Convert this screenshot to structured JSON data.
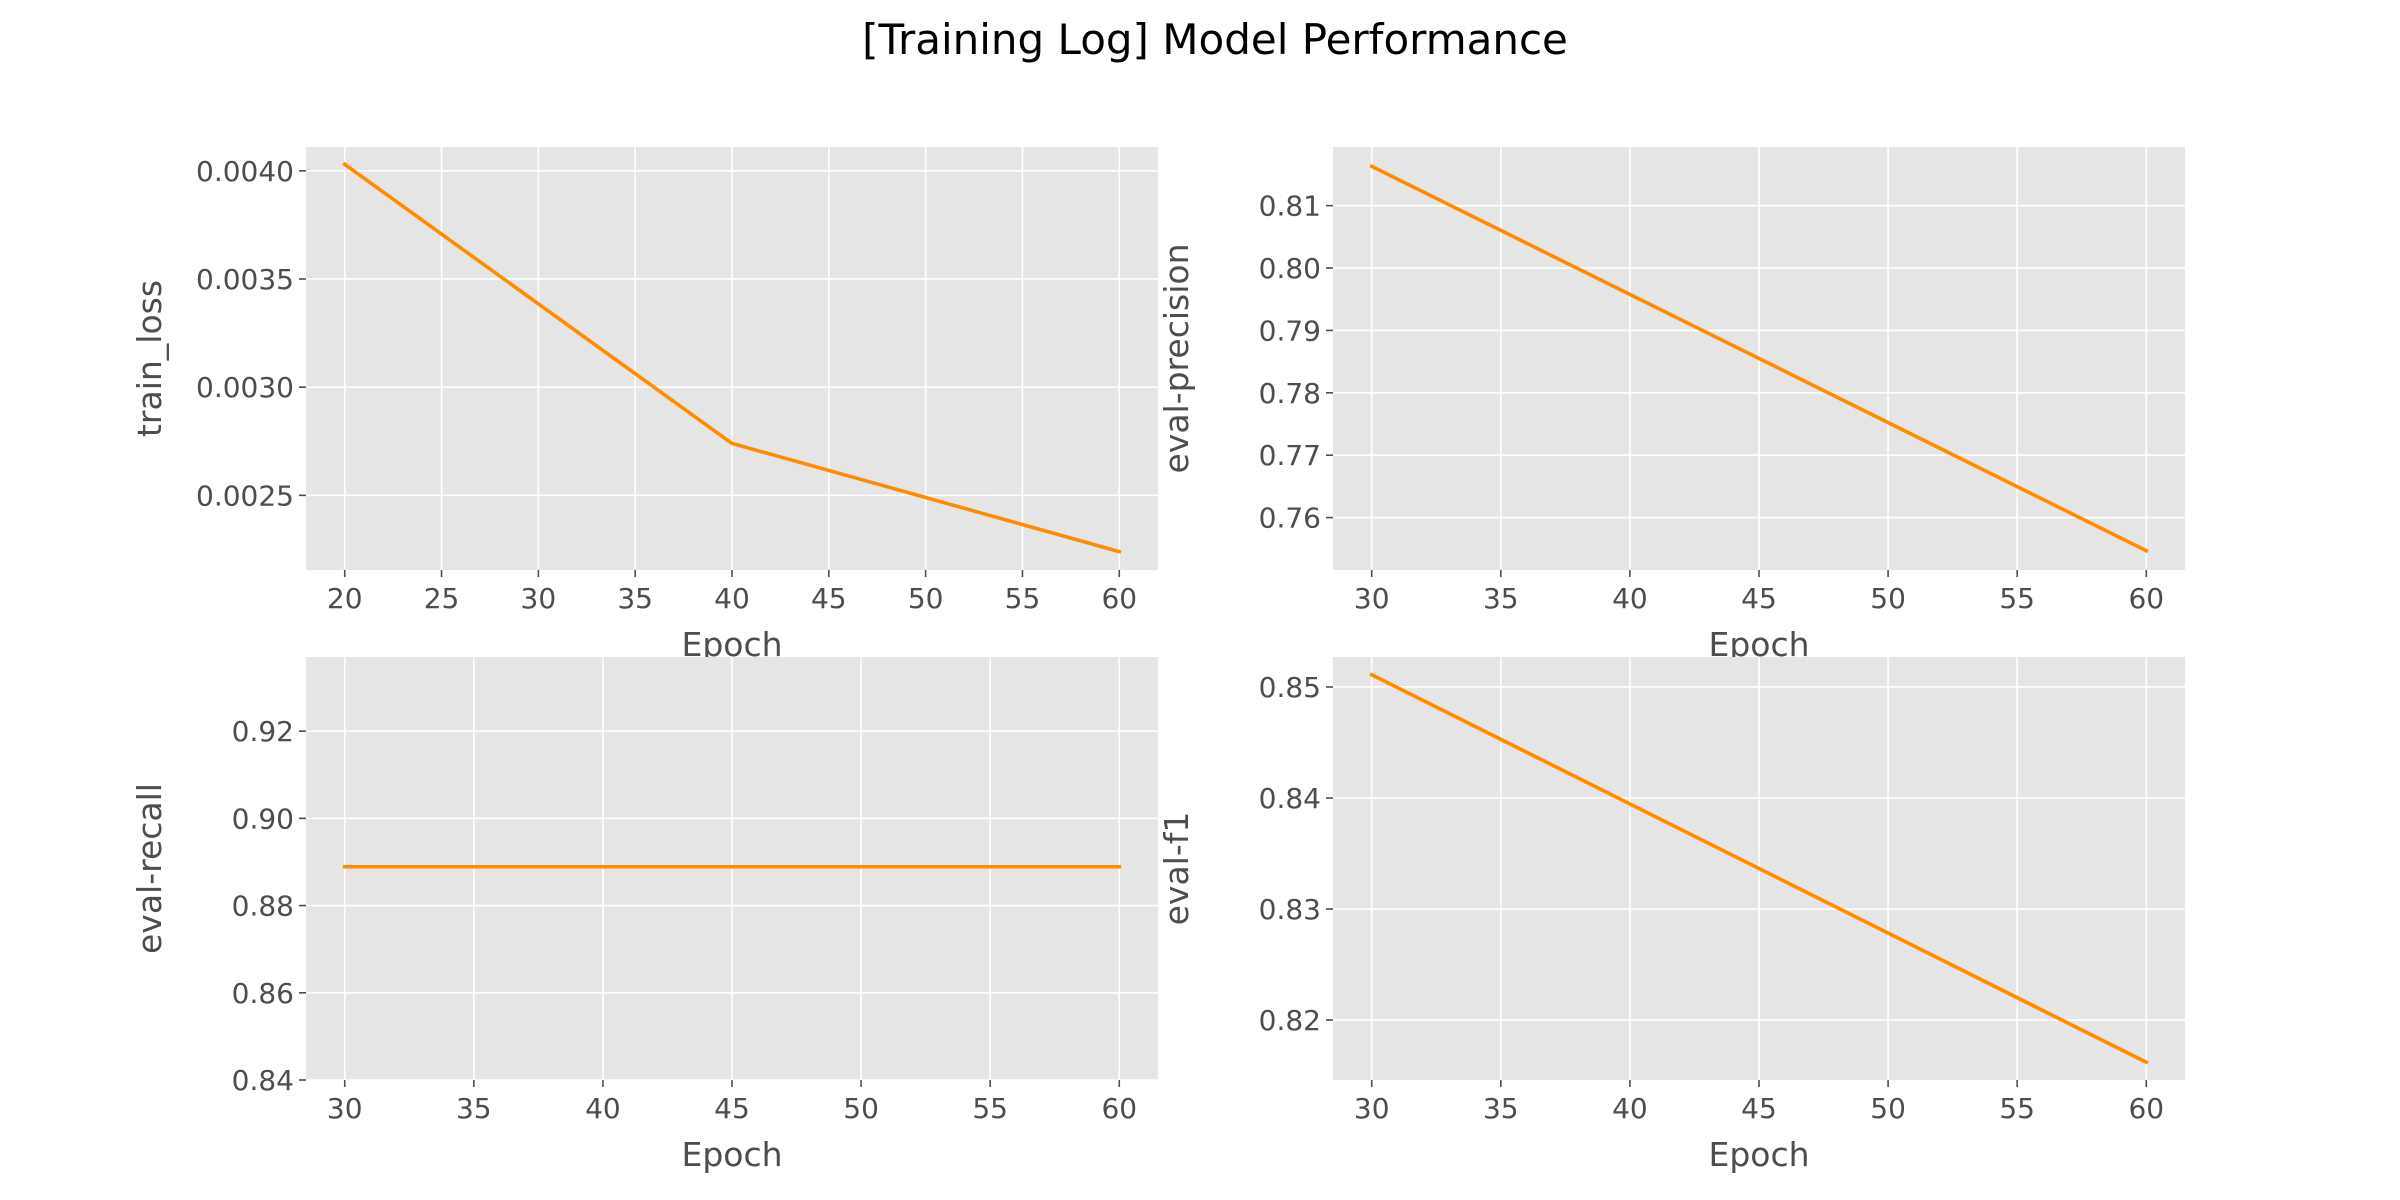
{
  "figure": {
    "title": "[Training Log] Model Performance"
  },
  "style": {
    "panel_background": "#e5e5e5",
    "grid_color": "#ffffff",
    "line_color": "#ff8c00",
    "text_color": "#4d4d4d"
  },
  "chart_data": [
    {
      "type": "line",
      "panel": "top-left",
      "xlabel": "Epoch",
      "ylabel": "train_loss",
      "x": [
        20,
        40,
        60
      ],
      "series": [
        {
          "values": [
            0.00403,
            0.00274,
            0.00224
          ]
        }
      ],
      "xlim": [
        18.0,
        62.0
      ],
      "ylim": [
        0.002155,
        0.00411
      ],
      "xticks": [
        20,
        25,
        30,
        35,
        40,
        45,
        50,
        55,
        60
      ],
      "xtick_labels": [
        "20",
        "25",
        "30",
        "35",
        "40",
        "45",
        "50",
        "55",
        "60"
      ],
      "yticks": [
        0.0025,
        0.003,
        0.0035,
        0.004
      ],
      "ytick_labels": [
        "0.0025",
        "0.0030",
        "0.0035",
        "0.0040"
      ],
      "grid": true
    },
    {
      "type": "line",
      "panel": "top-right",
      "xlabel": "Epoch",
      "ylabel": "eval-precision",
      "x": [
        30,
        60
      ],
      "series": [
        {
          "values": [
            0.8163,
            0.7547
          ]
        }
      ],
      "xlim": [
        28.5,
        61.5
      ],
      "ylim": [
        0.7516,
        0.8194
      ],
      "xticks": [
        30,
        35,
        40,
        45,
        50,
        55,
        60
      ],
      "xtick_labels": [
        "30",
        "35",
        "40",
        "45",
        "50",
        "55",
        "60"
      ],
      "yticks": [
        0.76,
        0.77,
        0.78,
        0.79,
        0.8,
        0.81
      ],
      "ytick_labels": [
        "0.76",
        "0.77",
        "0.78",
        "0.79",
        "0.80",
        "0.81"
      ],
      "grid": true
    },
    {
      "type": "line",
      "panel": "bottom-left",
      "xlabel": "Epoch",
      "ylabel": "eval-recall",
      "x": [
        30,
        60
      ],
      "series": [
        {
          "values": [
            0.8889,
            0.8889
          ]
        }
      ],
      "xlim": [
        28.5,
        61.5
      ],
      "ylim": [
        0.84,
        0.937
      ],
      "xticks": [
        30,
        35,
        40,
        45,
        50,
        55,
        60
      ],
      "xtick_labels": [
        "30",
        "35",
        "40",
        "45",
        "50",
        "55",
        "60"
      ],
      "yticks": [
        0.84,
        0.86,
        0.88,
        0.9,
        0.92
      ],
      "ytick_labels": [
        "0.84",
        "0.86",
        "0.88",
        "0.90",
        "0.92"
      ],
      "grid": true
    },
    {
      "type": "line",
      "panel": "bottom-right",
      "xlabel": "Epoch",
      "ylabel": "eval-f1",
      "x": [
        30,
        60
      ],
      "series": [
        {
          "values": [
            0.8511,
            0.8162
          ]
        }
      ],
      "xlim": [
        28.5,
        61.5
      ],
      "ylim": [
        0.8146,
        0.8527
      ],
      "xticks": [
        30,
        35,
        40,
        45,
        50,
        55,
        60
      ],
      "xtick_labels": [
        "30",
        "35",
        "40",
        "45",
        "50",
        "55",
        "60"
      ],
      "yticks": [
        0.82,
        0.83,
        0.84,
        0.85
      ],
      "ytick_labels": [
        "0.82",
        "0.83",
        "0.84",
        "0.85"
      ],
      "grid": true
    }
  ]
}
